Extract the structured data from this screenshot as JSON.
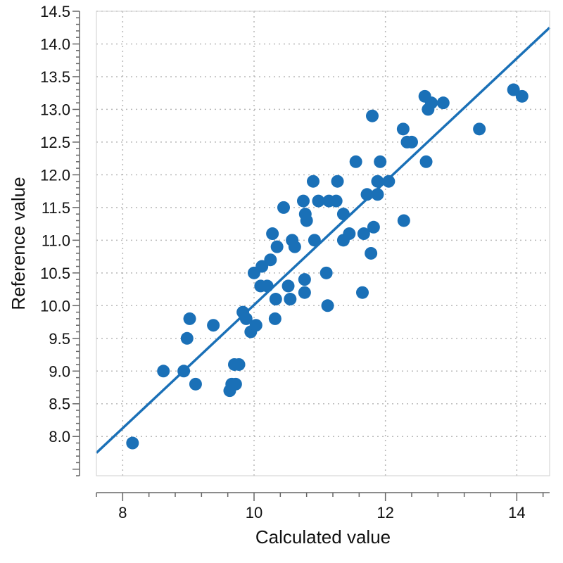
{
  "chart_data": {
    "type": "scatter",
    "xlabel": "Calculated value",
    "ylabel": "Reference value",
    "xlim": [
      7.6,
      14.5
    ],
    "ylim": [
      7.4,
      14.5
    ],
    "x_ticks": [
      8,
      10,
      12,
      14
    ],
    "x_minor_step": 0.4,
    "y_ticks": [
      8.0,
      8.5,
      9.0,
      9.5,
      10.0,
      10.5,
      11.0,
      11.5,
      12.0,
      12.5,
      13.0,
      13.5,
      14.0,
      14.5
    ],
    "y_minor_step": 0.1,
    "grid": true,
    "colors": {
      "points": "#1a70b7",
      "line": "#1a70b7",
      "grid": "#b8b8b8",
      "axis": "#666666"
    },
    "fit_line": {
      "x": [
        7.6,
        14.5
      ],
      "y": [
        7.75,
        14.25
      ]
    },
    "points": [
      [
        8.15,
        7.9
      ],
      [
        8.62,
        9.0
      ],
      [
        8.93,
        9.0
      ],
      [
        8.98,
        9.5
      ],
      [
        9.02,
        9.8
      ],
      [
        9.11,
        8.8
      ],
      [
        9.38,
        9.7
      ],
      [
        9.63,
        8.7
      ],
      [
        9.66,
        8.8
      ],
      [
        9.7,
        9.1
      ],
      [
        9.72,
        8.8
      ],
      [
        9.77,
        9.1
      ],
      [
        9.83,
        9.9
      ],
      [
        9.88,
        9.8
      ],
      [
        9.95,
        9.6
      ],
      [
        10.0,
        10.5
      ],
      [
        10.03,
        9.7
      ],
      [
        10.1,
        10.3
      ],
      [
        10.12,
        10.6
      ],
      [
        10.2,
        10.3
      ],
      [
        10.25,
        10.7
      ],
      [
        10.28,
        11.1
      ],
      [
        10.32,
        9.8
      ],
      [
        10.33,
        10.1
      ],
      [
        10.35,
        10.9
      ],
      [
        10.45,
        11.5
      ],
      [
        10.52,
        10.3
      ],
      [
        10.55,
        10.1
      ],
      [
        10.58,
        11.0
      ],
      [
        10.62,
        10.9
      ],
      [
        10.75,
        11.6
      ],
      [
        10.77,
        10.4
      ],
      [
        10.77,
        10.2
      ],
      [
        10.78,
        11.4
      ],
      [
        10.8,
        11.3
      ],
      [
        10.9,
        11.9
      ],
      [
        10.92,
        11.0
      ],
      [
        10.98,
        11.6
      ],
      [
        11.1,
        10.5
      ],
      [
        11.12,
        10.0
      ],
      [
        11.14,
        11.6
      ],
      [
        11.25,
        11.6
      ],
      [
        11.27,
        11.9
      ],
      [
        11.36,
        11.4
      ],
      [
        11.36,
        11.0
      ],
      [
        11.45,
        11.1
      ],
      [
        11.55,
        12.2
      ],
      [
        11.65,
        10.2
      ],
      [
        11.67,
        11.1
      ],
      [
        11.72,
        11.7
      ],
      [
        11.78,
        10.8
      ],
      [
        11.8,
        12.9
      ],
      [
        11.82,
        11.2
      ],
      [
        11.88,
        11.7
      ],
      [
        11.88,
        11.9
      ],
      [
        11.92,
        12.2
      ],
      [
        12.05,
        11.9
      ],
      [
        12.27,
        12.7
      ],
      [
        12.28,
        11.3
      ],
      [
        12.33,
        12.5
      ],
      [
        12.4,
        12.5
      ],
      [
        12.6,
        13.2
      ],
      [
        12.62,
        12.2
      ],
      [
        12.65,
        13.0
      ],
      [
        12.7,
        13.1
      ],
      [
        12.88,
        13.1
      ],
      [
        13.43,
        12.7
      ],
      [
        13.95,
        13.3
      ],
      [
        14.08,
        13.2
      ]
    ]
  }
}
